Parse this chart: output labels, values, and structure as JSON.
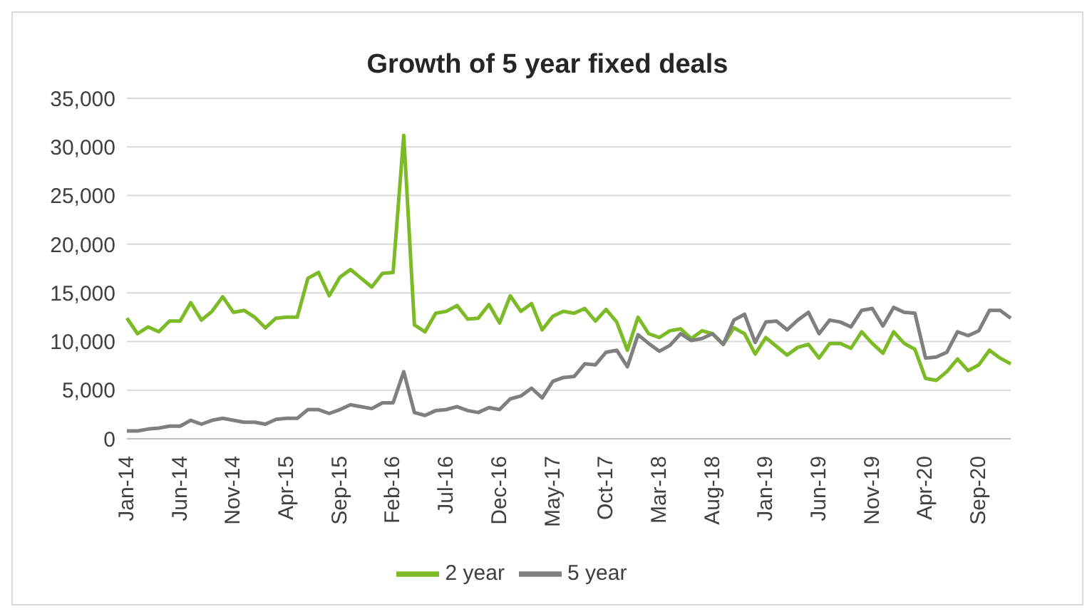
{
  "chart_data": {
    "type": "line",
    "title": "Growth of 5 year fixed deals",
    "categories": [
      "Jan-14",
      null,
      null,
      null,
      null,
      "Jun-14",
      null,
      null,
      null,
      null,
      "Nov-14",
      null,
      null,
      null,
      null,
      "Apr-15",
      null,
      null,
      null,
      null,
      "Sep-15",
      null,
      null,
      null,
      null,
      "Feb-16",
      null,
      null,
      null,
      null,
      "Jul-16",
      null,
      null,
      null,
      null,
      "Dec-16",
      null,
      null,
      null,
      null,
      "May-17",
      null,
      null,
      null,
      null,
      "Oct-17",
      null,
      null,
      null,
      null,
      "Mar-18",
      null,
      null,
      null,
      null,
      "Aug-18",
      null,
      null,
      null,
      null,
      "Jan-19",
      null,
      null,
      null,
      null,
      "Jun-19",
      null,
      null,
      null,
      null,
      "Nov-19",
      null,
      null,
      null,
      null,
      "Apr-20",
      null,
      null,
      null,
      null,
      "Sep-20",
      null,
      null,
      null
    ],
    "series": [
      {
        "name": "2 year",
        "color": "#7cba27",
        "values": [
          12400,
          10800,
          11500,
          11000,
          12100,
          12100,
          14000,
          12200,
          13100,
          14600,
          13000,
          13200,
          12500,
          11400,
          12400,
          12500,
          12500,
          16500,
          17100,
          14700,
          16600,
          17400,
          16500,
          15600,
          17000,
          17100,
          31200,
          11700,
          11000,
          12900,
          13100,
          13700,
          12300,
          12400,
          13800,
          11900,
          14700,
          13100,
          13900,
          11200,
          12600,
          13100,
          12900,
          13400,
          12100,
          13300,
          12000,
          9100,
          12500,
          10800,
          10400,
          11100,
          11300,
          10300,
          11100,
          10800,
          9700,
          11400,
          10800,
          8700,
          10400,
          9500,
          8600,
          9400,
          9700,
          8300,
          9800,
          9800,
          9300,
          11000,
          9800,
          8800,
          11000,
          9800,
          9200,
          6200,
          6000,
          6900,
          8200,
          7000,
          7600,
          9100,
          8300,
          7700
        ]
      },
      {
        "name": "5 year",
        "color": "#7f7f7f",
        "values": [
          800,
          800,
          1000,
          1100,
          1300,
          1300,
          1900,
          1500,
          1900,
          2100,
          1900,
          1700,
          1700,
          1500,
          2000,
          2100,
          2100,
          3000,
          3000,
          2600,
          3000,
          3500,
          3300,
          3100,
          3700,
          3700,
          6900,
          2700,
          2400,
          2900,
          3000,
          3300,
          2900,
          2700,
          3200,
          3000,
          4100,
          4400,
          5200,
          4200,
          5900,
          6300,
          6400,
          7700,
          7600,
          8900,
          9100,
          7400,
          10700,
          9800,
          9000,
          9600,
          10800,
          10100,
          10300,
          10800,
          9700,
          12200,
          12800,
          9900,
          12000,
          12100,
          11200,
          12200,
          13000,
          10800,
          12200,
          12000,
          11500,
          13200,
          13400,
          11600,
          13500,
          13000,
          12900,
          8300,
          8400,
          8900,
          11000,
          10600,
          11100,
          13200,
          13200,
          12400
        ]
      }
    ],
    "ylim": [
      0,
      35000
    ],
    "yticks": [
      0,
      {
        "value": 5000,
        "label": "5,000"
      },
      {
        "value": 10000,
        "label": "10,000"
      },
      {
        "value": 15000,
        "label": "15,000"
      },
      {
        "value": 20000,
        "label": "20,000"
      },
      {
        "value": 25000,
        "label": "25,000"
      },
      {
        "value": 30000,
        "label": "30,000"
      },
      {
        "value": 35000,
        "label": "35,000"
      }
    ],
    "grid": "y",
    "legend": "bottom",
    "marker": "none",
    "line_style": "solid"
  }
}
